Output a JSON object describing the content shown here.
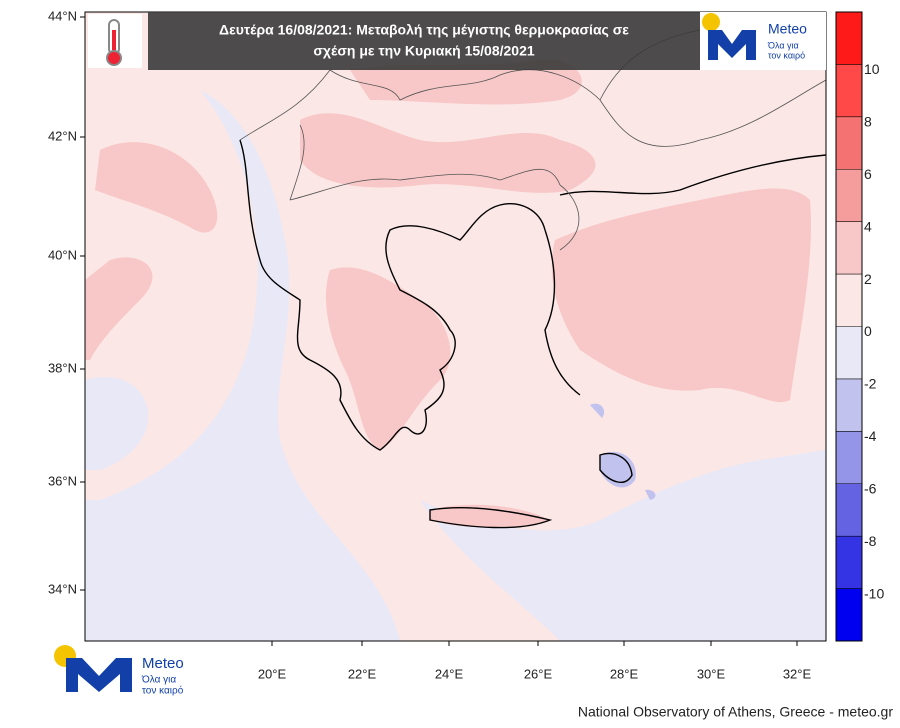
{
  "title": [
    "Δευτέρα 16/08/2021: Μεταβολή της μέγιστης θερμοκρασίας σε",
    "σχέση με την Κυριακή 15/08/2021"
  ],
  "lat_labels": [
    "44°N",
    "42°N",
    "40°N",
    "38°N",
    "36°N",
    "34°N"
  ],
  "lon_labels": [
    "20°E",
    "22°E",
    "24°E",
    "26°E",
    "28°E",
    "30°E",
    "32°E"
  ],
  "colorbar": {
    "ticks": [
      10,
      8,
      6,
      4,
      2,
      0,
      -2,
      -4,
      -6,
      -8,
      -10
    ],
    "colors": [
      "#ff1a1a",
      "#ff4848",
      "#f57272",
      "#f59c9c",
      "#f8c8c8",
      "#fbe7e5",
      "#e8e8f7",
      "#c2c2ef",
      "#9494e8",
      "#6464e2",
      "#3434e4",
      "#0000f0"
    ]
  },
  "logo": {
    "name": "Meteo",
    "tagline": [
      "Όλα για",
      "τον καιρό"
    ]
  },
  "credit": "National Observatory of Athens, Greece - meteo.gr"
}
